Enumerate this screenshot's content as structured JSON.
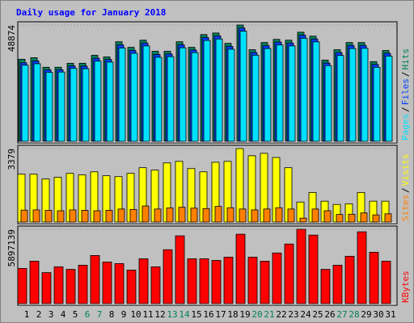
{
  "chart_data": [
    {
      "type": "bar",
      "title": "Daily usage for January 2018",
      "ylim": [
        0,
        48874
      ],
      "yticks": [
        48874
      ],
      "legend_separator": "/",
      "series": [
        {
          "name": "Pages",
          "color": "#00E0FF",
          "values": [
            32000,
            32600,
            29000,
            29100,
            30700,
            30500,
            33700,
            33300,
            39200,
            37000,
            40100,
            35300,
            35600,
            39300,
            37300,
            42400,
            43000,
            38700,
            46300,
            36200,
            39000,
            40500,
            40100,
            43300,
            41800,
            31800,
            36100,
            39000,
            39100,
            31100,
            35800
          ]
        },
        {
          "name": "Files",
          "color": "#0040FF",
          "values": [
            33000,
            33800,
            30100,
            30100,
            31700,
            31600,
            34900,
            34400,
            40500,
            38200,
            41300,
            36500,
            36700,
            40600,
            38400,
            43600,
            44300,
            39900,
            47600,
            37300,
            40200,
            41700,
            41300,
            44600,
            43000,
            32900,
            37300,
            40300,
            40300,
            32300,
            37000
          ]
        },
        {
          "name": "Hits",
          "color": "#00805C",
          "values": [
            34480,
            35150,
            31130,
            31130,
            32800,
            32800,
            36150,
            35480,
            41840,
            39500,
            42510,
            37830,
            37830,
            41840,
            39500,
            44850,
            45530,
            41170,
            48874,
            38500,
            41510,
            42850,
            42510,
            45860,
            44190,
            34150,
            38500,
            41510,
            41510,
            33480,
            38160
          ]
        }
      ]
    },
    {
      "type": "bar",
      "ylim": [
        0,
        3379
      ],
      "yticks": [
        3379
      ],
      "legend_separator": "/",
      "series": [
        {
          "name": "Sites",
          "color": "#FF8000",
          "values": [
            550,
            560,
            540,
            520,
            560,
            540,
            520,
            540,
            600,
            580,
            740,
            600,
            650,
            680,
            640,
            620,
            720,
            660,
            600,
            560,
            600,
            660,
            600,
            180,
            600,
            520,
            350,
            360,
            420,
            330,
            380
          ]
        },
        {
          "name": "Visits",
          "color": "#FFFF00",
          "values": [
            2200,
            2200,
            1980,
            2060,
            2240,
            2170,
            2310,
            2130,
            2090,
            2240,
            2500,
            2390,
            2720,
            2790,
            2460,
            2310,
            2750,
            2790,
            3379,
            3050,
            3160,
            2970,
            2500,
            920,
            1360,
            960,
            810,
            840,
            1360,
            960,
            960
          ]
        }
      ]
    },
    {
      "type": "bar",
      "ylim": [
        0,
        5897139
      ],
      "yticks": [
        5897139
      ],
      "categories": [
        "1",
        "2",
        "3",
        "4",
        "5",
        "6",
        "7",
        "8",
        "9",
        "10",
        "11",
        "12",
        "13",
        "14",
        "15",
        "16",
        "17",
        "18",
        "19",
        "20",
        "21",
        "22",
        "23",
        "24",
        "25",
        "26",
        "27",
        "28",
        "29",
        "30",
        "31"
      ],
      "category_colors": [
        "#000000",
        "#000000",
        "#000000",
        "#000000",
        "#000000",
        "#00805C",
        "#00805C",
        "#000000",
        "#000000",
        "#000000",
        "#000000",
        "#000000",
        "#00805C",
        "#00805C",
        "#000000",
        "#000000",
        "#000000",
        "#000000",
        "#000000",
        "#00805C",
        "#00805C",
        "#000000",
        "#000000",
        "#000000",
        "#000000",
        "#000000",
        "#00805C",
        "#00805C",
        "#000000",
        "#000000",
        "#000000"
      ],
      "series": [
        {
          "name": "KBytes",
          "color": "#FF0000",
          "values": [
            2790000,
            3370000,
            2460000,
            2920000,
            2720000,
            3050000,
            3820000,
            3300000,
            3180000,
            2660000,
            3560000,
            2920000,
            4280000,
            5380000,
            3560000,
            3560000,
            3430000,
            3690000,
            5510000,
            3690000,
            3370000,
            4020000,
            4730000,
            5897139,
            5440000,
            2720000,
            3050000,
            3760000,
            5700000,
            4080000,
            3370000
          ]
        }
      ]
    }
  ]
}
